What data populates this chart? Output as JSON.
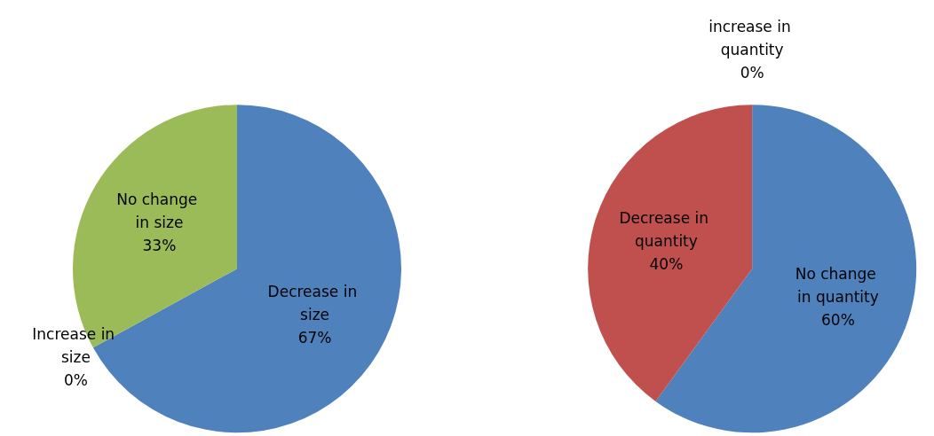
{
  "chart_data": [
    {
      "type": "pie",
      "categories": [
        "Decrease in size",
        "Increase in size",
        "No change in size"
      ],
      "values": [
        67,
        0,
        33
      ],
      "colors": [
        "#4f81bd",
        "#c0504d",
        "#9bbb59"
      ],
      "value_labels": [
        "67%",
        "0%",
        "33%"
      ]
    },
    {
      "type": "pie",
      "categories": [
        "No change in quantity",
        "Decrease in quantity",
        "increase in quantity"
      ],
      "values": [
        60,
        40,
        0
      ],
      "colors": [
        "#4f81bd",
        "#c0504d",
        "#9bbb59"
      ],
      "value_labels": [
        "60%",
        "40%",
        "0%"
      ]
    }
  ]
}
